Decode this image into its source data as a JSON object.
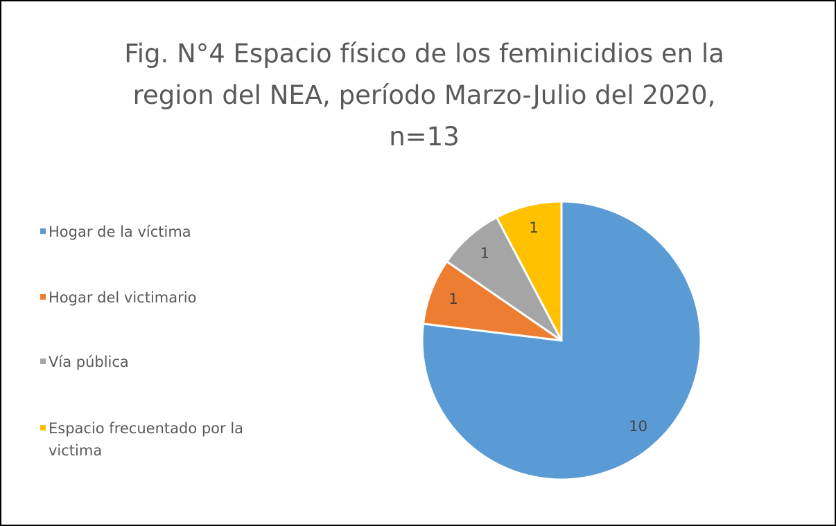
{
  "chart_data": {
    "type": "pie",
    "title": "Fig. N°4 Espacio físico de los feminicidios en la region del NEA, período Marzo-Julio del 2020, n=13",
    "categories": [
      "Hogar de la víctima",
      "Hogar del victimario",
      "Vía pública",
      "Espacio frecuentado por la victima"
    ],
    "values": [
      10,
      1,
      1,
      1
    ],
    "colors": [
      "#5b9bd5",
      "#ed7d31",
      "#a5a5a5",
      "#ffc000"
    ],
    "legend": "left"
  }
}
